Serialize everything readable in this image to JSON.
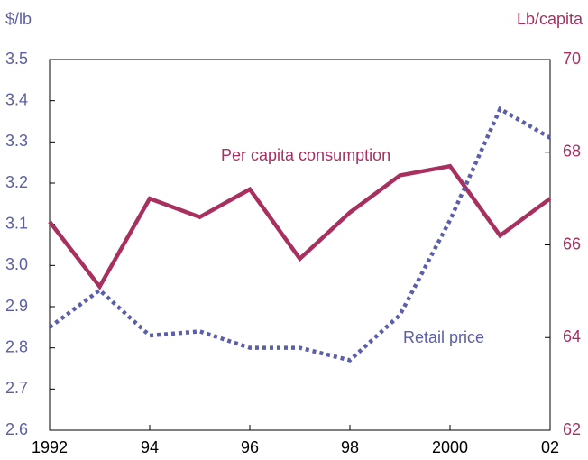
{
  "chart_data": {
    "type": "line",
    "ylabel": "$/lb",
    "y2label": "Lb/capita",
    "x": [
      1992,
      1993,
      1994,
      1995,
      1996,
      1997,
      1998,
      1999,
      2000,
      2001,
      2002
    ],
    "xlim": [
      1992,
      2002
    ],
    "xticks": [
      {
        "value": 1992,
        "label": "1992"
      },
      {
        "value": 1994,
        "label": "94"
      },
      {
        "value": 1996,
        "label": "96"
      },
      {
        "value": 1998,
        "label": "98"
      },
      {
        "value": 2000,
        "label": "2000"
      },
      {
        "value": 2002,
        "label": "02"
      }
    ],
    "ylim": [
      2.6,
      3.5
    ],
    "yticks": [
      2.6,
      2.7,
      2.8,
      2.9,
      {
        "value": 3,
        "label": "3.0"
      },
      3.1,
      3.2,
      3.3,
      3.4,
      3.5
    ],
    "y2lim": [
      62,
      70
    ],
    "y2ticks": [
      62,
      64,
      66,
      68,
      70
    ],
    "grid": false,
    "series": [
      {
        "name": "Per capita consumption",
        "color": "#a8305f",
        "axis": "y2",
        "style": "solid",
        "values": [
          66.5,
          65.1,
          67.0,
          66.6,
          67.2,
          65.7,
          66.7,
          67.5,
          67.7,
          66.2,
          67.0
        ]
      },
      {
        "name": "Retail price",
        "color": "#5b5ea8",
        "axis": "y",
        "style": "dotted",
        "values": [
          2.85,
          2.94,
          2.83,
          2.84,
          2.8,
          2.8,
          2.77,
          2.88,
          3.11,
          3.38,
          3.31
        ]
      }
    ]
  }
}
